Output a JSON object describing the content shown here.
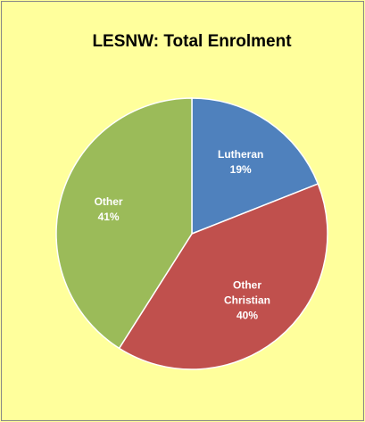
{
  "chart_data": {
    "type": "pie",
    "title": "LESNW: Total Enrolment",
    "categories": [
      "Lutheran",
      "Other Christian",
      "Other"
    ],
    "values": [
      19,
      40,
      41
    ],
    "value_labels": [
      "19%",
      "40%",
      "41%"
    ],
    "colors": [
      "#4f81bd",
      "#c0504d",
      "#9bbb59"
    ]
  }
}
